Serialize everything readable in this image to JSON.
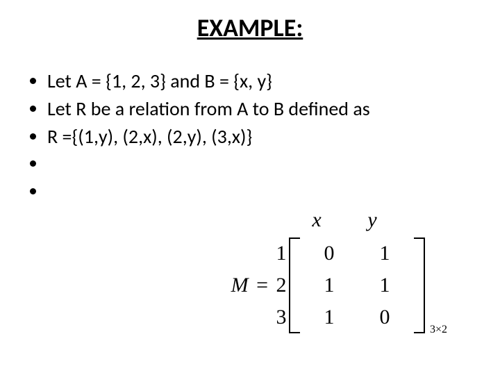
{
  "title": "EXAMPLE:",
  "bullets": [
    "Let A = {1, 2, 3} and B = {x, y}",
    "Let R be a relation from A to B defined as",
    "R ={(1,y), (2,x), (2,y), (3,x)}",
    "",
    ""
  ],
  "matrix": {
    "label_prefix": "M",
    "equals": "=",
    "col_headers": [
      "x",
      "y"
    ],
    "row_headers": [
      "1",
      "2",
      "3"
    ],
    "values": [
      [
        "0",
        "1"
      ],
      [
        "1",
        "1"
      ],
      [
        "1",
        "0"
      ]
    ],
    "subscript": "3×2",
    "font_family": "Times New Roman",
    "header_fontsize": 30,
    "cell_fontsize": 30,
    "bracket_color": "#000000"
  },
  "colors": {
    "background": "#ffffff",
    "text": "#000000"
  },
  "typography": {
    "title_fontsize": 36,
    "title_weight": 700,
    "body_fontsize": 28,
    "body_family": "Calibri"
  }
}
